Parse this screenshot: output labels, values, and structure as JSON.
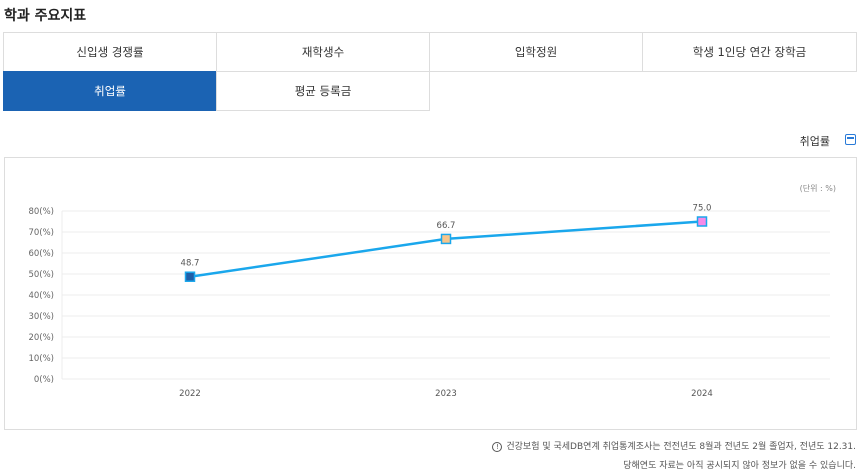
{
  "title": "학과 주요지표",
  "tabs": [
    {
      "label": "신입생 경쟁률",
      "active": false
    },
    {
      "label": "재학생수",
      "active": false
    },
    {
      "label": "입학정원",
      "active": false
    },
    {
      "label": "학생 1인당 연간 장학금",
      "active": false
    },
    {
      "label": "취업률",
      "active": true
    },
    {
      "label": "평균 등록금",
      "active": false
    }
  ],
  "chart_header": {
    "label": "취업률",
    "download_icon": "download-icon"
  },
  "unit": "(단위 : %)",
  "colors": {
    "accent": "#1b63b3",
    "line": "#1aa7ec"
  },
  "chart_data": {
    "type": "line",
    "categories": [
      "2022",
      "2023",
      "2024"
    ],
    "values": [
      48.7,
      66.7,
      75.0
    ],
    "value_labels": [
      "48.7",
      "66.7",
      "75.0"
    ],
    "marker_colors": [
      "#1f5fa8",
      "#f7c58a",
      "#f58ae8"
    ],
    "ylim": [
      0,
      80
    ],
    "yticks": [
      "0(%)",
      "10(%)",
      "20(%)",
      "30(%)",
      "40(%)",
      "50(%)",
      "60(%)",
      "70(%)",
      "80(%)"
    ],
    "grid": true
  },
  "notes": [
    "건강보험 및 국세DB연계 취업통계조사는 전전년도 8월과 전년도 2월 졸업자, 전년도 12.31.",
    "당해연도 자료는 아직 공시되지 않아 정보가 없을 수 있습니다."
  ]
}
